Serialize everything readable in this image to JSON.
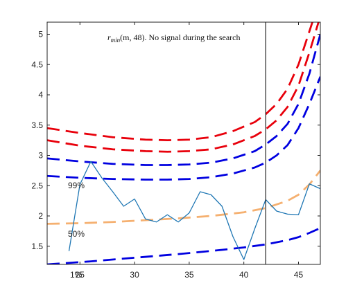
{
  "chart_data": {
    "type": "line",
    "title_parts": {
      "func": "r",
      "sub": "min",
      "args": "(m, 48). No signal during the search"
    },
    "xlim": [
      22,
      47
    ],
    "ylim": [
      1.2,
      5.2
    ],
    "x_ticks": [
      25,
      30,
      35,
      40,
      45
    ],
    "x_tick_labels": [
      "25",
      "30",
      "35",
      "40",
      "45"
    ],
    "y_ticks": [
      1.5,
      2,
      2.5,
      3,
      3.5,
      4,
      4.5,
      5
    ],
    "y_tick_labels": [
      "1.5",
      "2",
      "2.5",
      "3",
      "3.5",
      "4",
      "4.5",
      "5"
    ],
    "extra_x_label": "1%",
    "annotations": [
      "99%",
      "50%"
    ],
    "vertical_line_x": 42,
    "grid": false,
    "colors": {
      "red": "#e8000b",
      "blue": "#0000e0",
      "orange": "#f5b070",
      "solid": "#1f77b4",
      "axis": "#222222"
    },
    "series": [
      {
        "style": "dashed",
        "color": "red",
        "x": [
          22,
          25,
          28,
          31,
          33,
          35,
          37,
          39,
          41,
          42,
          43,
          44,
          45,
          46,
          47
        ],
        "y": [
          3.45,
          3.37,
          3.3,
          3.26,
          3.25,
          3.26,
          3.3,
          3.4,
          3.55,
          3.68,
          3.85,
          4.1,
          4.5,
          5.05,
          5.6
        ]
      },
      {
        "style": "dashed",
        "color": "red",
        "x": [
          22,
          25,
          28,
          31,
          33,
          35,
          37,
          39,
          41,
          42,
          43,
          44,
          45,
          46,
          47
        ],
        "y": [
          3.25,
          3.16,
          3.1,
          3.07,
          3.06,
          3.07,
          3.1,
          3.18,
          3.32,
          3.43,
          3.58,
          3.8,
          4.15,
          4.7,
          5.3
        ]
      },
      {
        "style": "dashed",
        "color": "blue",
        "x": [
          22,
          25,
          28,
          31,
          33,
          35,
          37,
          39,
          41,
          42,
          43,
          44,
          45,
          46,
          47
        ],
        "y": [
          2.95,
          2.9,
          2.86,
          2.84,
          2.84,
          2.85,
          2.88,
          2.95,
          3.07,
          3.18,
          3.32,
          3.52,
          3.85,
          4.35,
          5.0
        ]
      },
      {
        "style": "dashed",
        "color": "blue",
        "x": [
          22,
          25,
          28,
          31,
          33,
          35,
          37,
          39,
          41,
          42,
          43,
          44,
          45,
          46,
          47
        ],
        "y": [
          2.66,
          2.63,
          2.61,
          2.6,
          2.6,
          2.61,
          2.64,
          2.7,
          2.8,
          2.88,
          3.0,
          3.17,
          3.45,
          3.85,
          4.3
        ]
      },
      {
        "style": "dashed",
        "color": "orange",
        "x": [
          22,
          25,
          28,
          31,
          34,
          37,
          40,
          42,
          44,
          45,
          46,
          47
        ],
        "y": [
          1.87,
          1.88,
          1.9,
          1.93,
          1.96,
          2.0,
          2.06,
          2.13,
          2.25,
          2.35,
          2.52,
          2.75
        ]
      },
      {
        "style": "dashed",
        "color": "blue",
        "x": [
          22,
          26,
          30,
          34,
          38,
          40,
          42,
          44,
          45,
          46,
          47
        ],
        "y": [
          1.2,
          1.25,
          1.31,
          1.37,
          1.44,
          1.48,
          1.53,
          1.6,
          1.65,
          1.72,
          1.8
        ]
      },
      {
        "style": "solid",
        "color": "solid",
        "x": [
          24,
          25,
          26,
          27,
          28,
          29,
          30,
          31,
          32,
          33,
          34,
          35,
          36,
          37,
          38,
          39,
          40,
          41,
          42,
          43,
          44,
          45,
          46,
          47
        ],
        "y": [
          1.42,
          2.52,
          2.9,
          2.63,
          2.4,
          2.16,
          2.28,
          1.95,
          1.9,
          2.02,
          1.9,
          2.05,
          2.4,
          2.35,
          2.16,
          1.66,
          1.28,
          1.79,
          2.27,
          2.08,
          2.03,
          2.02,
          2.53,
          2.45
        ]
      }
    ]
  }
}
